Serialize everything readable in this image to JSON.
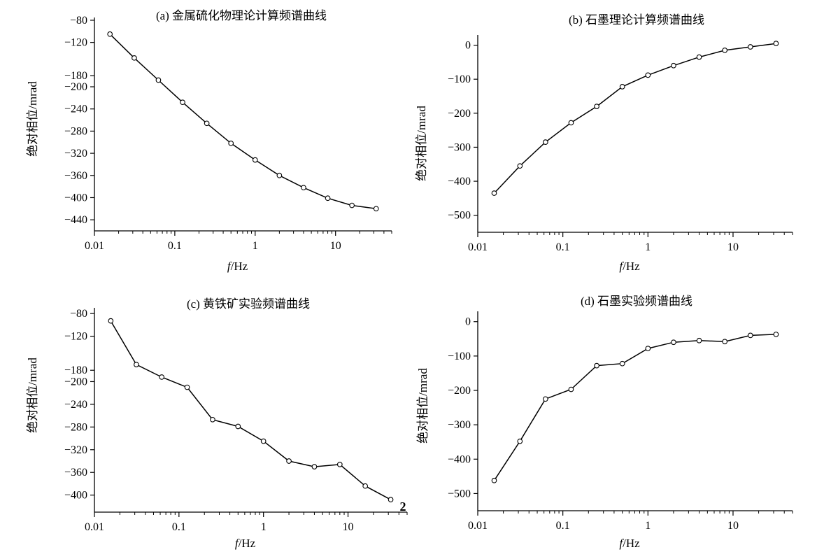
{
  "chart_data": [
    {
      "type": "line",
      "title": "(a) 金属硫化物理论计算频谱曲线",
      "xlabel_italic": "f",
      "xlabel_rest": "/Hz",
      "ylabel": "绝对相位/mrad",
      "xscale": "log",
      "xlim": [
        0.01,
        50
      ],
      "ylim": [
        -460,
        -75
      ],
      "xticks": [
        0.01,
        0.1,
        1,
        10
      ],
      "xtick_labels": [
        "0.01",
        "0.1",
        "1",
        "10"
      ],
      "yticks": [
        -80,
        -120,
        -180,
        -200,
        -240,
        -280,
        -320,
        -360,
        -400,
        -440
      ],
      "ytick_labels": [
        "-80",
        "-120",
        "-180",
        "-200",
        "-240",
        "-280",
        "-320",
        "-360",
        "-400",
        "-440"
      ],
      "grid": false,
      "x": [
        0.0156,
        0.0313,
        0.0625,
        0.125,
        0.25,
        0.5,
        1,
        2,
        4,
        8,
        16,
        32
      ],
      "series": [
        {
          "values": [
            -105,
            -148,
            -188,
            -228,
            -266,
            -302,
            -332,
            -360,
            -382,
            -401,
            -414,
            -420
          ]
        }
      ]
    },
    {
      "type": "line",
      "title": "(b) 石墨理论计算频谱曲线",
      "xlabel_italic": "f",
      "xlabel_rest": "/Hz",
      "ylabel": "绝对相位/mrad",
      "xscale": "log",
      "xlim": [
        0.01,
        50
      ],
      "ylim": [
        -550,
        30
      ],
      "xticks": [
        0.01,
        0.1,
        1,
        10
      ],
      "xtick_labels": [
        "0.01",
        "0.1",
        "1",
        "10"
      ],
      "yticks": [
        0,
        -100,
        -200,
        -300,
        -400,
        -500
      ],
      "ytick_labels": [
        "0",
        "-100",
        "-200",
        "-300",
        "-400",
        "-500"
      ],
      "grid": false,
      "x": [
        0.0156,
        0.0313,
        0.0625,
        0.125,
        0.25,
        0.5,
        1,
        2,
        4,
        8,
        16,
        32
      ],
      "series": [
        {
          "values": [
            -435,
            -355,
            -285,
            -228,
            -180,
            -122,
            -88,
            -60,
            -35,
            -15,
            -5,
            5
          ]
        }
      ]
    },
    {
      "type": "line",
      "title": "(c) 黄铁矿实验频谱曲线",
      "xlabel_italic": "f",
      "xlabel_rest": "/Hz",
      "ylabel": "绝对相位/mrad",
      "xscale": "log",
      "xlim": [
        0.01,
        50
      ],
      "ylim": [
        -430,
        -70
      ],
      "xticks": [
        0.01,
        0.1,
        1,
        10
      ],
      "xtick_labels": [
        "0.01",
        "0.1",
        "1",
        "10"
      ],
      "yticks": [
        -80,
        -120,
        -180,
        -200,
        -240,
        -280,
        -320,
        -360,
        -400
      ],
      "ytick_labels": [
        "-80",
        "-120",
        "-180",
        "-200",
        "-240",
        "-280",
        "-320",
        "-360",
        "-400"
      ],
      "grid": false,
      "x": [
        0.0156,
        0.0313,
        0.0625,
        0.125,
        0.25,
        0.5,
        1,
        2,
        4,
        8,
        16,
        32
      ],
      "series": [
        {
          "values": [
            -93,
            -170,
            -192,
            -210,
            -267,
            -279,
            -305,
            -340,
            -350,
            -346,
            -384,
            -408
          ]
        }
      ],
      "corner_mark": "2"
    },
    {
      "type": "line",
      "title": "(d) 石墨实验频谱曲线",
      "xlabel_italic": "f",
      "xlabel_rest": "/Hz",
      "ylabel": "绝对相位/mrad",
      "xscale": "log",
      "xlim": [
        0.01,
        50
      ],
      "ylim": [
        -550,
        30
      ],
      "xticks": [
        0.01,
        0.1,
        1,
        10
      ],
      "xtick_labels": [
        "0.01",
        "0.1",
        "1",
        "10"
      ],
      "yticks": [
        0,
        -100,
        -200,
        -300,
        -400,
        -500
      ],
      "ytick_labels": [
        "0",
        "-100",
        "-200",
        "-300",
        "-400",
        "-500"
      ],
      "grid": false,
      "x": [
        0.0156,
        0.0313,
        0.0625,
        0.125,
        0.25,
        0.5,
        1,
        2,
        4,
        8,
        16,
        32
      ],
      "series": [
        {
          "values": [
            -462,
            -348,
            -225,
            -197,
            -128,
            -122,
            -78,
            -60,
            -55,
            -58,
            -40,
            -37
          ]
        }
      ]
    }
  ]
}
